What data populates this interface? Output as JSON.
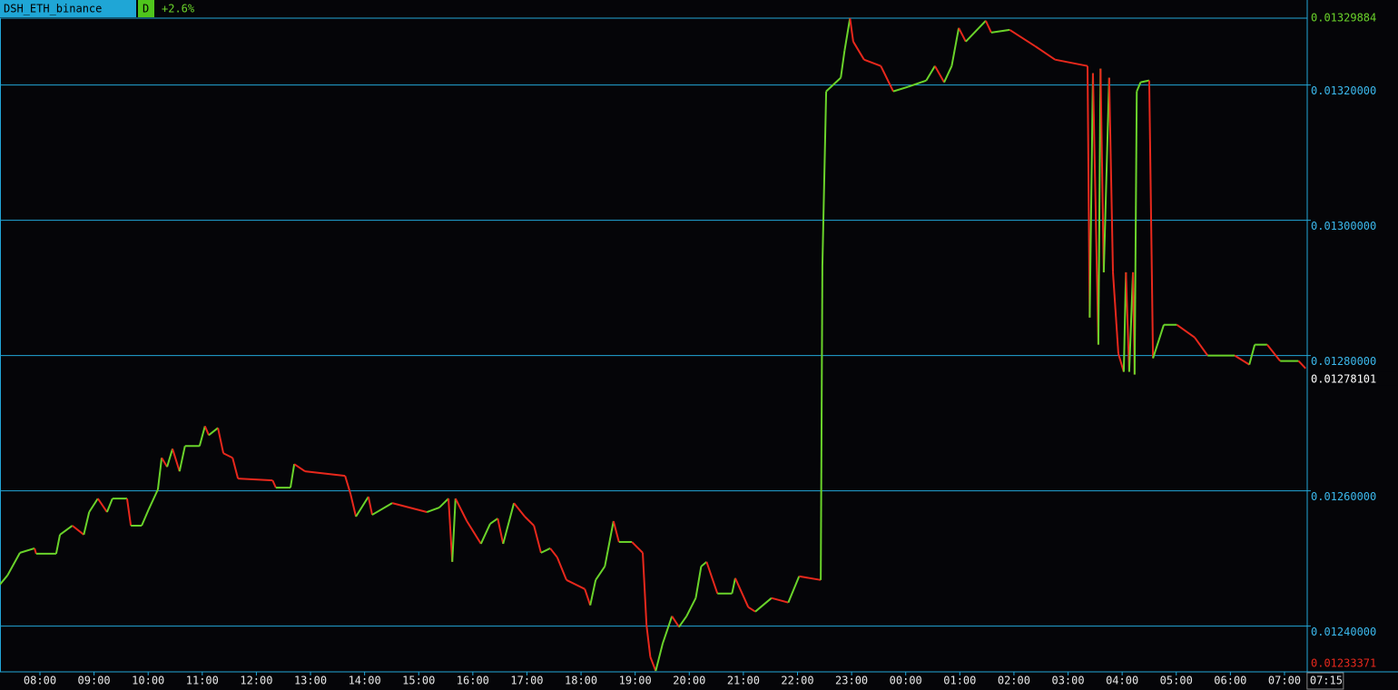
{
  "chart_data": {
    "type": "line",
    "symbol": "DSH_ETH_binance",
    "interval": "D",
    "change": "+2.6%",
    "x": [
      7.26,
      7.4,
      7.63,
      7.9,
      7.93,
      8.3,
      8.37,
      8.6,
      8.81,
      8.91,
      9.07,
      9.24,
      9.34,
      9.61,
      9.68,
      9.88,
      10.01,
      10.18,
      10.25,
      10.35,
      10.45,
      10.58,
      10.68,
      10.95,
      11.05,
      11.12,
      11.29,
      11.39,
      11.56,
      11.66,
      12.3,
      12.36,
      12.63,
      12.7,
      12.9,
      13.64,
      13.74,
      13.84,
      14.07,
      14.14,
      14.51,
      15.15,
      15.38,
      15.55,
      15.62,
      15.68,
      15.89,
      16.15,
      16.32,
      16.46,
      16.56,
      16.76,
      16.96,
      17.13,
      17.26,
      17.43,
      17.56,
      17.73,
      18.07,
      18.17,
      18.27,
      18.44,
      18.6,
      18.7,
      18.94,
      19.14,
      19.21,
      19.28,
      19.38,
      19.51,
      19.68,
      19.81,
      19.95,
      20.12,
      20.22,
      20.32,
      20.52,
      20.79,
      20.85,
      21.09,
      21.22,
      21.52,
      21.83,
      22.03,
      22.43,
      22.46,
      22.53,
      22.8,
      22.87,
      22.97,
      23.03,
      23.23,
      23.54,
      23.77,
      24.04,
      24.38,
      24.54,
      24.71,
      24.85,
      24.98,
      25.11,
      25.48,
      25.58,
      25.92,
      26.39,
      26.76,
      27.36,
      27.4,
      27.46,
      27.56,
      27.6,
      27.66,
      27.76,
      27.83,
      27.93,
      28.03,
      28.07,
      28.13,
      28.2,
      28.23,
      28.27,
      28.34,
      28.5,
      28.57,
      28.77,
      29.01,
      29.34,
      29.58,
      30.08,
      30.35,
      30.45,
      30.68,
      30.92,
      31.26,
      31.39
    ],
    "series": [
      {
        "up_color": "#6ad32a",
        "down_color": "#e8281c",
        "values": [
          0.0124615,
          0.0124749,
          0.0125084,
          0.012515,
          0.012507,
          0.012507,
          0.0125351,
          0.0125485,
          0.0125351,
          0.0125686,
          0.0125886,
          0.0125686,
          0.0125886,
          0.0125886,
          0.0125485,
          0.0125485,
          0.0125726,
          0.012602,
          0.0126488,
          0.0126354,
          0.0126622,
          0.0126288,
          0.0126662,
          0.0126662,
          0.0126956,
          0.0126823,
          0.012693,
          0.0126555,
          0.0126488,
          0.0126181,
          0.0126154,
          0.0126047,
          0.0126047,
          0.0126395,
          0.0126288,
          0.0126221,
          0.0125953,
          0.0125619,
          0.0125913,
          0.0125645,
          0.0125819,
          0.0125686,
          0.0125752,
          0.0125886,
          0.012495,
          0.0125886,
          0.0125552,
          0.0125217,
          0.0125512,
          0.0125592,
          0.0125217,
          0.0125819,
          0.0125619,
          0.0125485,
          0.0125084,
          0.012515,
          0.0125017,
          0.0124682,
          0.0124548,
          0.0124308,
          0.0124682,
          0.0124883,
          0.0125552,
          0.0125244,
          0.0125244,
          0.0125084,
          0.0124013,
          0.0123545,
          0.0123337,
          0.0123746,
          0.0124147,
          0.0123987,
          0.0124147,
          0.0124415,
          0.0124883,
          0.012495,
          0.0124482,
          0.0124482,
          0.0124709,
          0.0124281,
          0.0124214,
          0.0124415,
          0.0124348,
          0.0124736,
          0.0124682,
          0.0129324,
          0.0131906,
          0.0132107,
          0.0132508,
          0.0132988,
          0.0132642,
          0.0132375,
          0.0132281,
          0.0131906,
          0.0131973,
          0.0132067,
          0.0132281,
          0.013204,
          0.0132281,
          0.0132843,
          0.0132642,
          0.013295,
          0.0132776,
          0.0132816,
          0.0132575,
          0.0132375,
          0.0132281,
          0.0128562,
          0.0132174,
          0.0128161,
          0.0132241,
          0.0129231,
          0.0132107,
          0.0129231,
          0.0128027,
          0.0127759,
          0.0129231,
          0.0127759,
          0.0129231,
          0.0127719,
          0.0131906,
          0.013204,
          0.0132067,
          0.012796,
          0.0128455,
          0.0128455,
          0.0128268,
          0.0128,
          0.0128,
          0.0127866,
          0.0128161,
          0.0128161,
          0.012792,
          0.012792,
          0.012781
        ]
      }
    ],
    "xlim": [
      7.262,
      31.42
    ],
    "xticks": [
      {
        "value": 8,
        "label": "08:00"
      },
      {
        "value": 9,
        "label": "09:00"
      },
      {
        "value": 10,
        "label": "10:00"
      },
      {
        "value": 11,
        "label": "11:00"
      },
      {
        "value": 12,
        "label": "12:00"
      },
      {
        "value": 13,
        "label": "13:00"
      },
      {
        "value": 14,
        "label": "14:00"
      },
      {
        "value": 15,
        "label": "15:00"
      },
      {
        "value": 16,
        "label": "16:00"
      },
      {
        "value": 17,
        "label": "17:00"
      },
      {
        "value": 18,
        "label": "18:00"
      },
      {
        "value": 19,
        "label": "19:00"
      },
      {
        "value": 20,
        "label": "20:00"
      },
      {
        "value": 21,
        "label": "21:00"
      },
      {
        "value": 22,
        "label": "22:00"
      },
      {
        "value": 23,
        "label": "23:00"
      },
      {
        "value": 24,
        "label": "00:00"
      },
      {
        "value": 25,
        "label": "01:00"
      },
      {
        "value": 26,
        "label": "02:00"
      },
      {
        "value": 27,
        "label": "03:00"
      },
      {
        "value": 28,
        "label": "04:00"
      },
      {
        "value": 29,
        "label": "05:00"
      },
      {
        "value": 30,
        "label": "06:00"
      },
      {
        "value": 31,
        "label": "07:00"
      }
    ],
    "x_current": {
      "value": 31.25,
      "label": "07:15"
    },
    "ylim": [
      0.01233371,
      0.01329884
    ],
    "yticks": [
      {
        "value": 0.0124,
        "label": "0.01240000"
      },
      {
        "value": 0.0126,
        "label": "0.01260000"
      },
      {
        "value": 0.0128,
        "label": "0.01280000"
      },
      {
        "value": 0.013,
        "label": "0.01300000"
      },
      {
        "value": 0.0132,
        "label": "0.01320000"
      }
    ],
    "price_labels": {
      "high": 0.01329884,
      "last": 0.01278101,
      "low": 0.01233371
    },
    "grid": true,
    "grid_color": "#22a6d8"
  }
}
